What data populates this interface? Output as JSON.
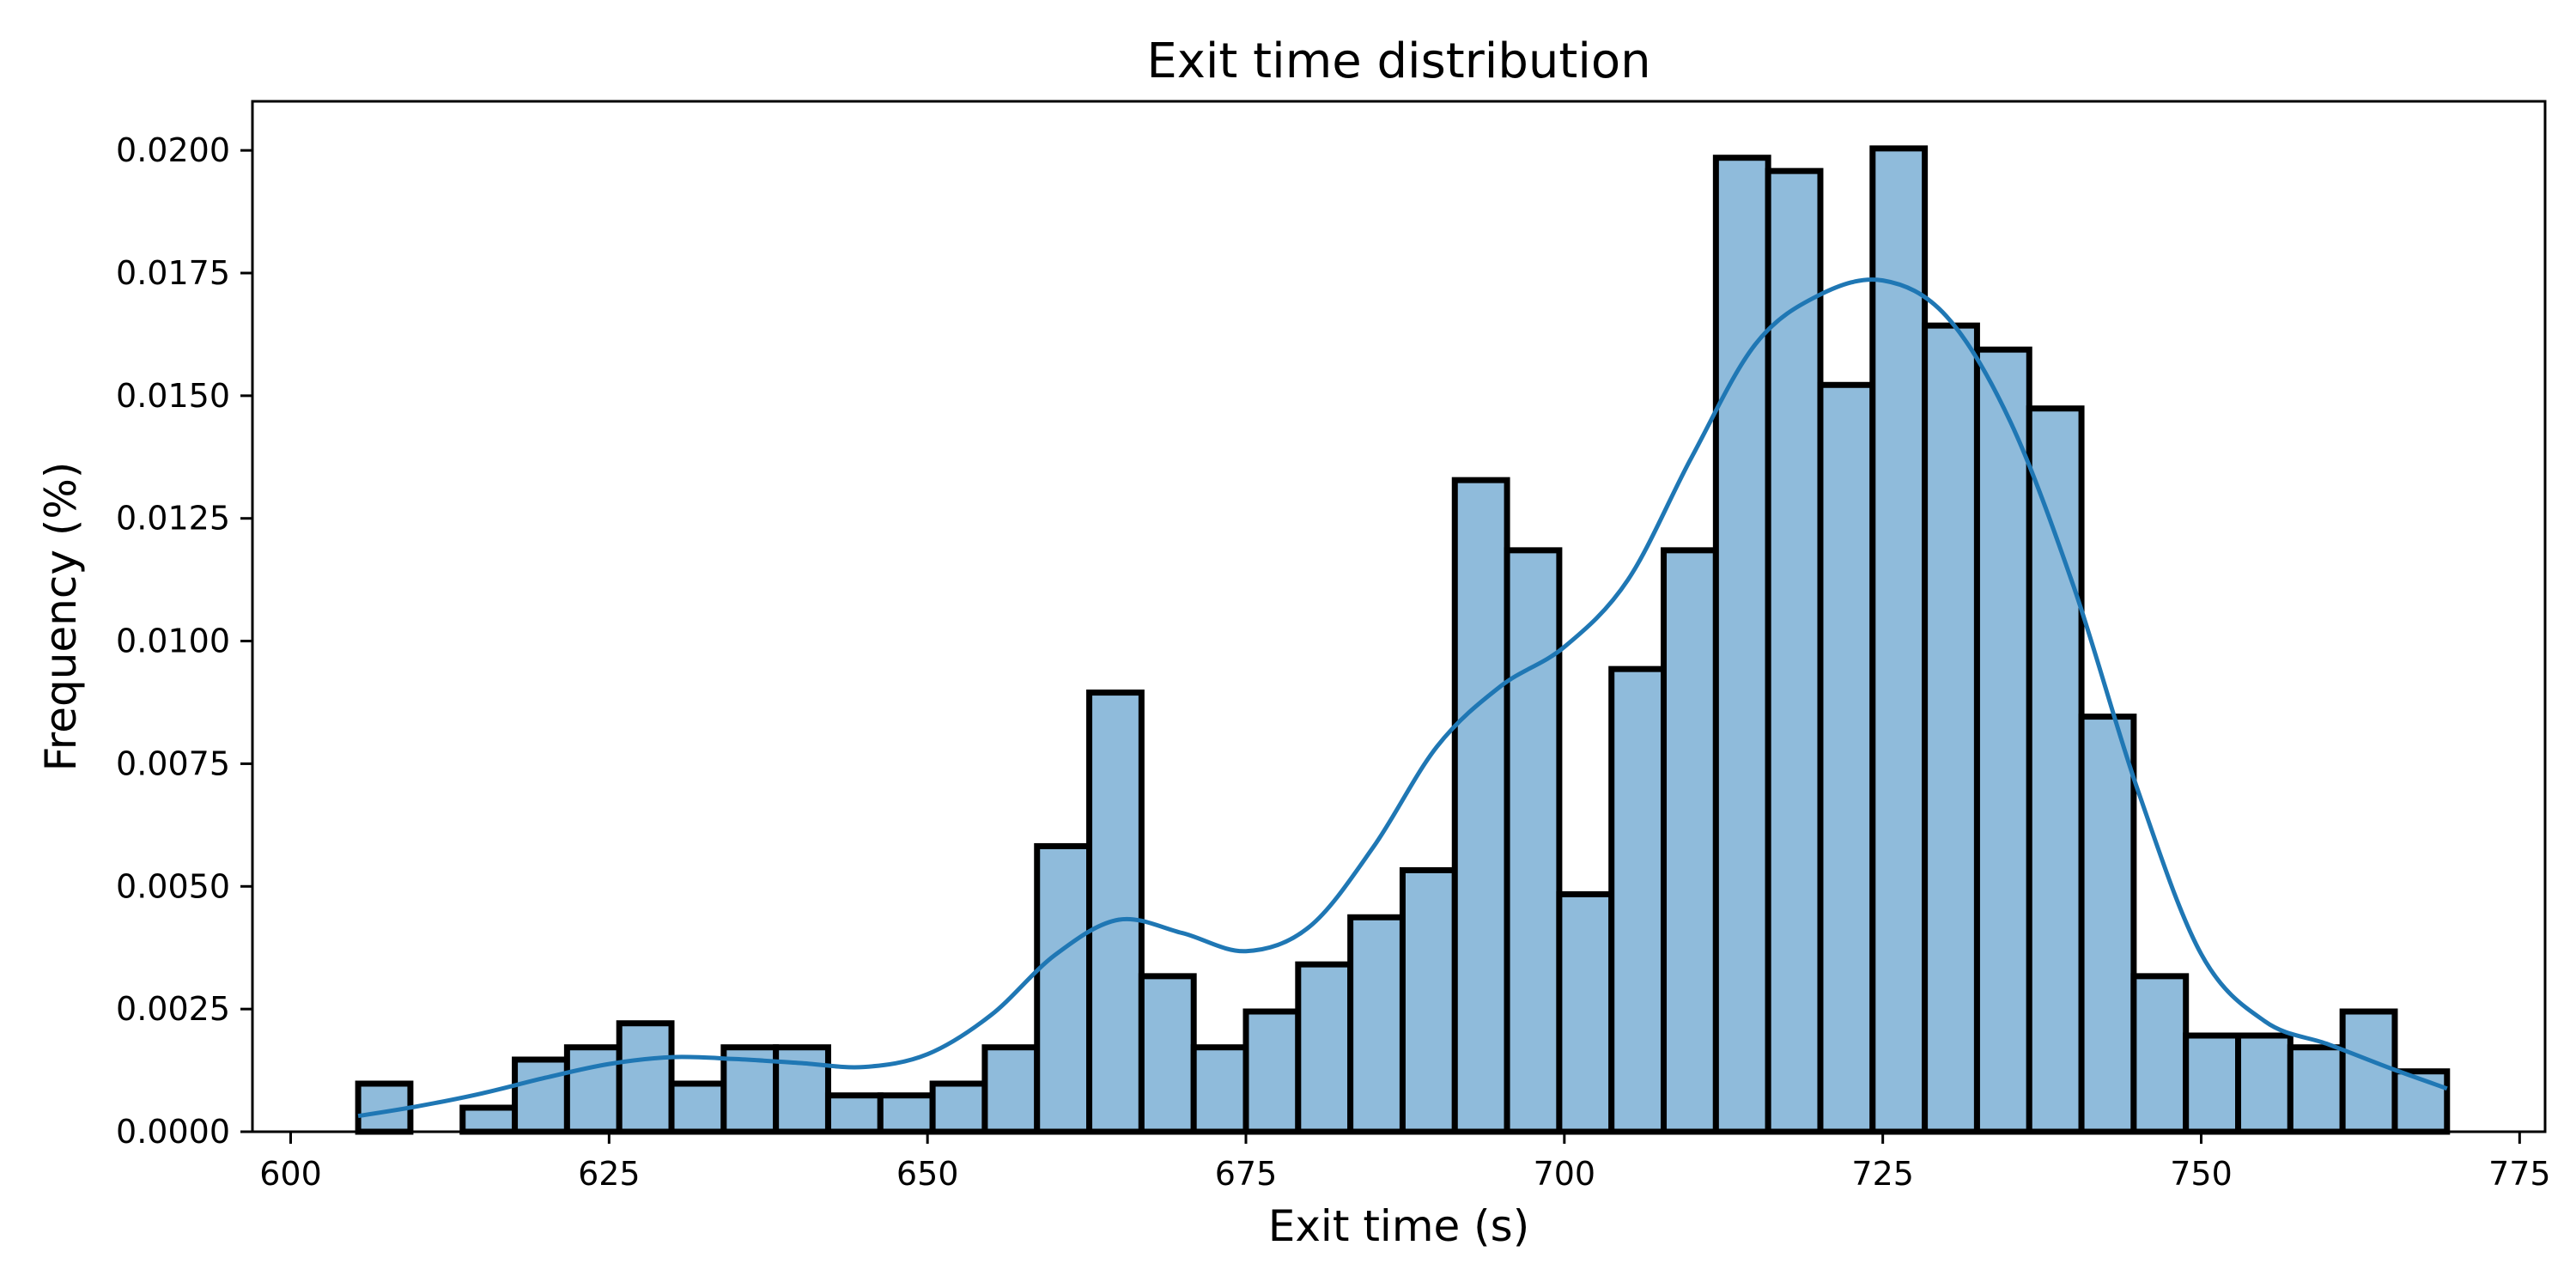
{
  "chart_data": {
    "type": "bar",
    "title": "Exit time distribution",
    "xlabel": "Exit time (s)",
    "ylabel": "Frequency (%)",
    "xlim": [
      597,
      777
    ],
    "ylim": [
      0,
      0.021
    ],
    "grid": false,
    "legend": "none",
    "x_ticks": [
      "600",
      "625",
      "650",
      "675",
      "700",
      "725",
      "750",
      "775"
    ],
    "x_tick_values": [
      600,
      625,
      650,
      675,
      700,
      725,
      750,
      775
    ],
    "y_ticks": [
      "0.0000",
      "0.0025",
      "0.0050",
      "0.0075",
      "0.0100",
      "0.0125",
      "0.0150",
      "0.0175",
      "0.0200"
    ],
    "y_tick_values": [
      0,
      0.0025,
      0.005,
      0.0075,
      0.01,
      0.0125,
      0.015,
      0.0175,
      0.02
    ],
    "bin_edges": [
      605.3,
      609.4,
      613.5,
      617.6,
      621.7,
      625.8,
      629.9,
      634.0,
      638.1,
      642.2,
      646.3,
      650.4,
      654.5,
      658.6,
      662.7,
      666.8,
      670.9,
      675.0,
      679.1,
      683.2,
      687.3,
      691.4,
      695.5,
      699.6,
      703.7,
      707.8,
      711.9,
      716.0,
      720.1,
      724.2,
      728.3,
      732.4,
      736.5,
      740.6,
      744.7,
      748.8,
      752.9,
      757.0,
      761.1,
      765.2,
      769.3
    ],
    "values": [
      0.00098,
      0.0,
      0.00049,
      0.00147,
      0.00172,
      0.00221,
      0.00098,
      0.00172,
      0.00172,
      0.00074,
      0.00074,
      0.00098,
      0.00172,
      0.00582,
      0.00895,
      0.00317,
      0.00172,
      0.00245,
      0.00341,
      0.00437,
      0.00533,
      0.01328,
      0.01185,
      0.00484,
      0.00943,
      0.01185,
      0.01985,
      0.01958,
      0.01522,
      0.02004,
      0.01643,
      0.01594,
      0.01474,
      0.00846,
      0.00317,
      0.00196,
      0.00196,
      0.00172,
      0.00245,
      0.00123
    ],
    "kde": {
      "x": [
        605.3,
        610,
        615,
        620,
        625,
        630,
        635,
        640,
        645,
        650,
        655,
        660,
        665,
        670,
        675,
        680,
        685,
        690,
        695,
        700,
        705,
        710,
        715,
        720,
        725,
        730,
        735,
        740,
        745,
        750,
        755,
        760,
        765,
        769.3
      ],
      "y": [
        0.00032,
        0.00052,
        0.00078,
        0.0011,
        0.00138,
        0.00152,
        0.00148,
        0.0014,
        0.00132,
        0.00158,
        0.00238,
        0.0036,
        0.00432,
        0.00405,
        0.00368,
        0.00418,
        0.0058,
        0.00785,
        0.00908,
        0.00988,
        0.01125,
        0.01375,
        0.01605,
        0.01705,
        0.01735,
        0.01662,
        0.01448,
        0.0111,
        0.00698,
        0.00362,
        0.00225,
        0.00178,
        0.00128,
        0.00088
      ]
    },
    "colors": {
      "bar_fill": "#8fbbdb",
      "bar_edge": "#000000",
      "kde_line": "#1f77b4"
    }
  }
}
